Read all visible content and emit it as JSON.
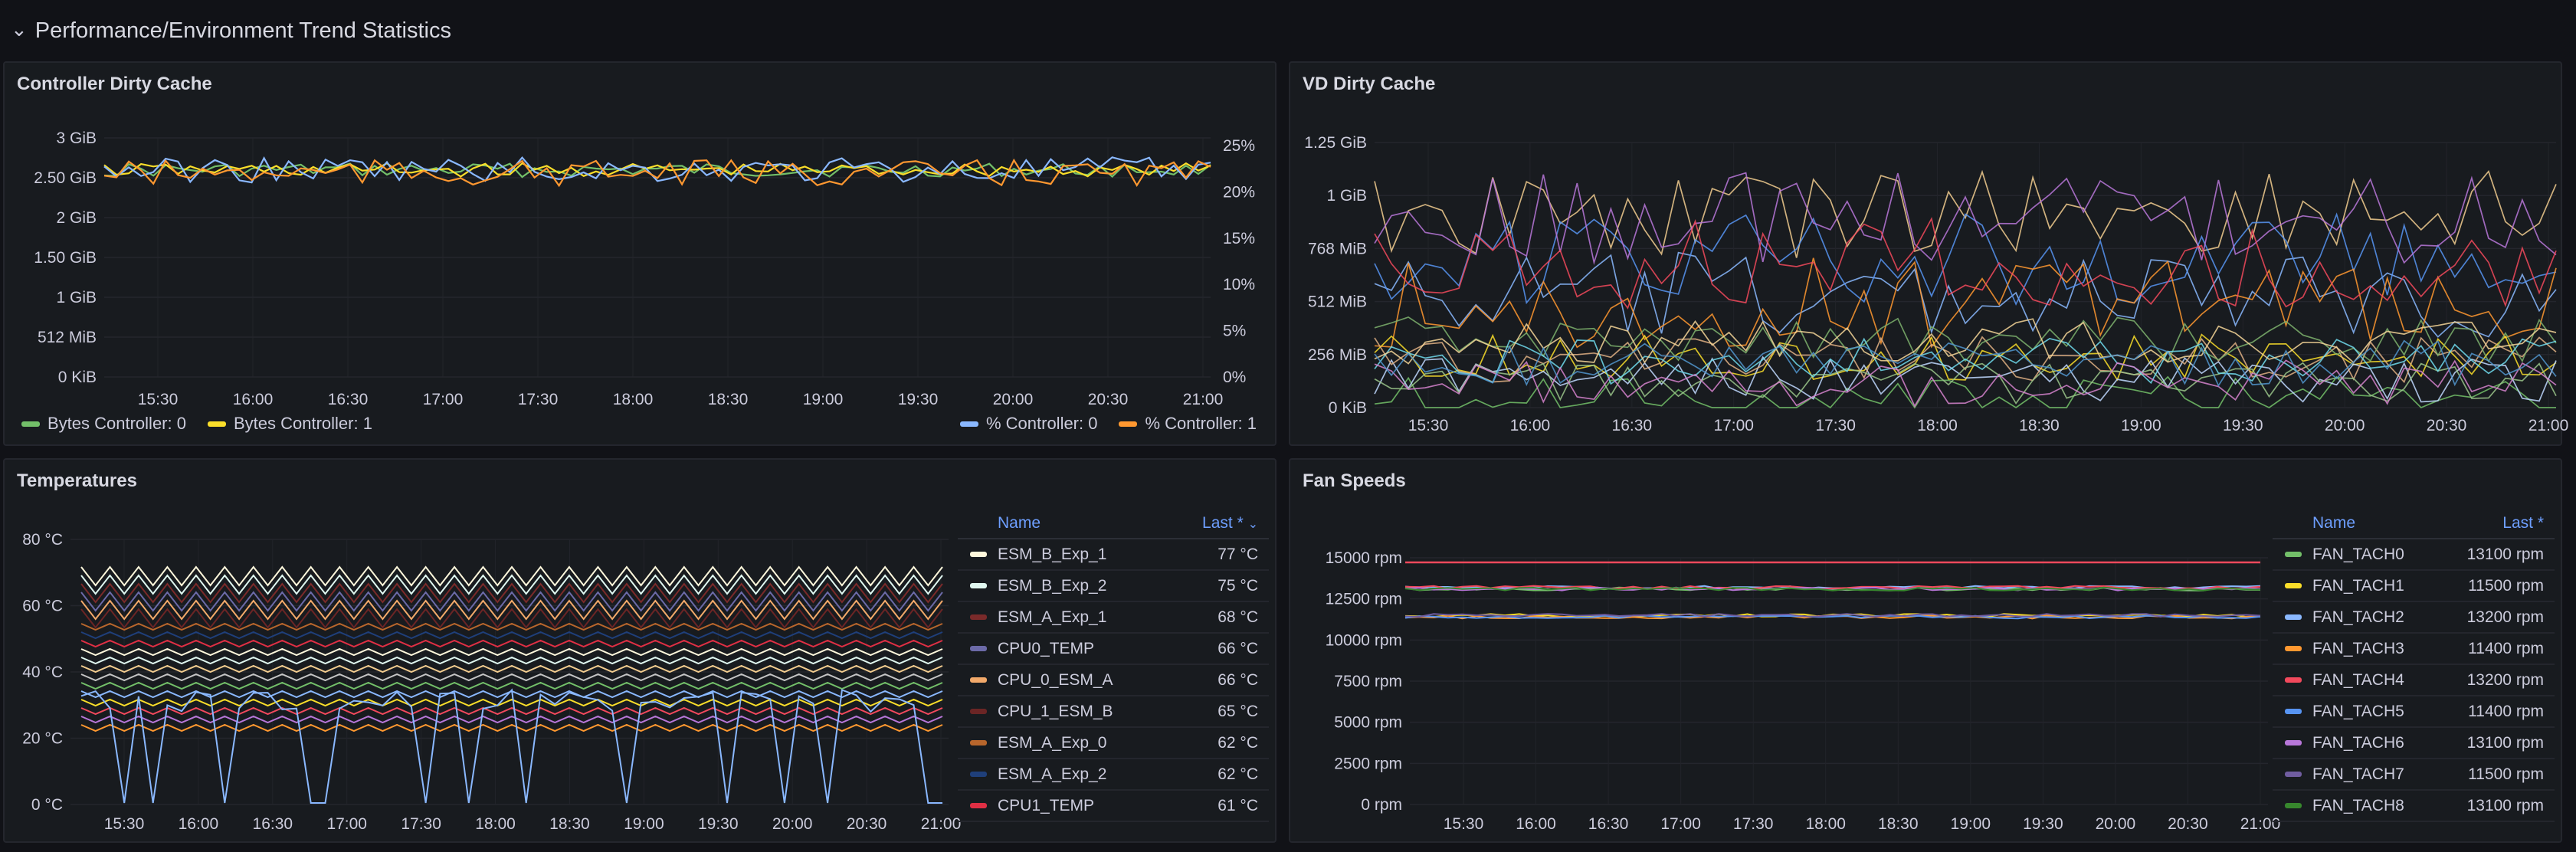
{
  "row": {
    "title": "Performance/Environment Trend Statistics",
    "chevron_icon": "chevron-down-icon"
  },
  "time_ticks": [
    "15:30",
    "16:00",
    "16:30",
    "17:00",
    "17:30",
    "18:00",
    "18:30",
    "19:00",
    "19:30",
    "20:00",
    "20:30",
    "21:00"
  ],
  "fan_time_ticks": [
    "15:30",
    "16:00",
    "16:30",
    "17:00",
    "17:30",
    "18:00",
    "18:30",
    "19:00",
    "19:30",
    "20:00",
    "20:30",
    "21:00"
  ],
  "panels": {
    "controller": {
      "title": "Controller Dirty Cache",
      "left_axis": [
        "3 GiB",
        "2.50 GiB",
        "2 GiB",
        "1.50 GiB",
        "1 GiB",
        "512 MiB",
        "0 KiB"
      ],
      "right_axis": [
        "25%",
        "20%",
        "15%",
        "10%",
        "5%",
        "0%"
      ],
      "legend_left": [
        {
          "name": "Bytes Controller: 0",
          "color": "#73bf69"
        },
        {
          "name": "Bytes Controller: 1",
          "color": "#fade2a"
        }
      ],
      "legend_right": [
        {
          "name": "% Controller: 0",
          "color": "#8ab8ff"
        },
        {
          "name": "% Controller: 1",
          "color": "#ff9830"
        }
      ]
    },
    "vd": {
      "title": "VD Dirty Cache",
      "left_axis": [
        "1.25 GiB",
        "1 GiB",
        "768 MiB",
        "512 MiB",
        "256 MiB",
        "0 KiB"
      ]
    },
    "temps": {
      "title": "Temperatures",
      "left_axis": [
        "80 °C",
        "60 °C",
        "40 °C",
        "20 °C",
        "0 °C"
      ],
      "legend_header": {
        "name": "Name",
        "value": "Last *"
      },
      "legend": [
        {
          "name": "ESM_B_Exp_1",
          "value": "77 °C",
          "color": "#fff8dc"
        },
        {
          "name": "ESM_B_Exp_2",
          "value": "75 °C",
          "color": "#e0f7f0"
        },
        {
          "name": "ESM_A_Exp_1",
          "value": "68 °C",
          "color": "#7a2a2a"
        },
        {
          "name": "CPU0_TEMP",
          "value": "66 °C",
          "color": "#6c6aa8"
        },
        {
          "name": "CPU_0_ESM_A",
          "value": "66 °C",
          "color": "#f2a96a"
        },
        {
          "name": "CPU_1_ESM_B",
          "value": "65 °C",
          "color": "#6b2525"
        },
        {
          "name": "ESM_A_Exp_0",
          "value": "62 °C",
          "color": "#b8662c"
        },
        {
          "name": "ESM_A_Exp_2",
          "value": "62 °C",
          "color": "#1f3f7a"
        },
        {
          "name": "CPU1_TEMP",
          "value": "61 °C",
          "color": "#e02f44"
        }
      ]
    },
    "fans": {
      "title": "Fan Speeds",
      "left_axis": [
        "15000 rpm",
        "12500 rpm",
        "10000 rpm",
        "7500 rpm",
        "5000 rpm",
        "2500 rpm",
        "0 rpm"
      ],
      "legend_header": {
        "name": "Name",
        "value": "Last *"
      },
      "legend": [
        {
          "name": "FAN_TACH0",
          "value": "13100 rpm",
          "color": "#73bf69"
        },
        {
          "name": "FAN_TACH1",
          "value": "11500 rpm",
          "color": "#fade2a"
        },
        {
          "name": "FAN_TACH2",
          "value": "13200 rpm",
          "color": "#8ab8ff"
        },
        {
          "name": "FAN_TACH3",
          "value": "11400 rpm",
          "color": "#ff9830"
        },
        {
          "name": "FAN_TACH4",
          "value": "13200 rpm",
          "color": "#f2495c"
        },
        {
          "name": "FAN_TACH5",
          "value": "11400 rpm",
          "color": "#5794f2"
        },
        {
          "name": "FAN_TACH6",
          "value": "13100 rpm",
          "color": "#b877d9"
        },
        {
          "name": "FAN_TACH7",
          "value": "11500 rpm",
          "color": "#705da0"
        },
        {
          "name": "FAN_TACH8",
          "value": "13100 rpm",
          "color": "#37872d"
        }
      ]
    }
  }
}
